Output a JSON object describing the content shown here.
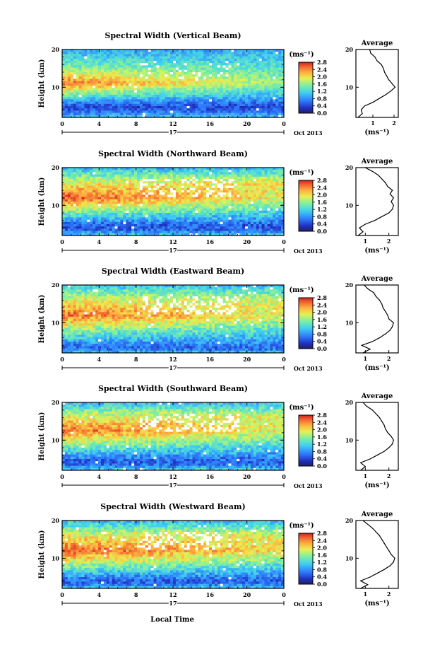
{
  "figure": {
    "xlabel": "Local Time",
    "date_label": "Oct 2013",
    "day_label": "17",
    "ylabel": "Height (km)",
    "colorbar_unit": "(ms⁻¹)",
    "avg_title": "Average",
    "avg_xlabel": "(ms⁻¹)"
  },
  "chart_data": [
    {
      "type": "heatmap",
      "title": "Spectral Width (Vertical Beam)",
      "xlabel": "Local Time",
      "ylabel": "Height (km)",
      "xlim": [
        0,
        24
      ],
      "ylim": [
        2,
        20
      ],
      "xticks": [
        "0",
        "4",
        "8",
        "12",
        "16",
        "20",
        "0"
      ],
      "yticks": [
        "20",
        "10"
      ],
      "colorbar": {
        "unit": "(ms⁻¹)",
        "ticks": [
          "2.8",
          "2.4",
          "2.0",
          "1.6",
          "1.2",
          "0.8",
          "0.4",
          "0.0"
        ],
        "range": [
          0,
          2.8
        ]
      },
      "field": {
        "top": [
          0.9,
          0.9
        ],
        "upper": [
          1.5,
          1.3
        ],
        "peak_height": 11,
        "peak": [
          2.5,
          1.6
        ],
        "trough_height": 5,
        "trough": 0.45,
        "noise": 0.25,
        "gaps": 0.02
      },
      "average": {
        "title": "Average",
        "xlabel": "(ms⁻¹)",
        "xlim": [
          0.2,
          2.2
        ],
        "xticks": [
          "1",
          "2"
        ],
        "ylim": [
          2,
          20
        ],
        "yticks": [
          "20",
          "10"
        ],
        "profile": [
          [
            0.3,
            2
          ],
          [
            0.5,
            3
          ],
          [
            0.45,
            4
          ],
          [
            0.6,
            5
          ],
          [
            1.0,
            6
          ],
          [
            1.3,
            7
          ],
          [
            1.6,
            8
          ],
          [
            1.85,
            9
          ],
          [
            2.05,
            10
          ],
          [
            1.9,
            11
          ],
          [
            1.75,
            12
          ],
          [
            1.65,
            13
          ],
          [
            1.55,
            14
          ],
          [
            1.5,
            15
          ],
          [
            1.4,
            16
          ],
          [
            1.2,
            17
          ],
          [
            1.1,
            18
          ],
          [
            0.9,
            19
          ],
          [
            0.85,
            20
          ]
        ]
      }
    },
    {
      "type": "heatmap",
      "title": "Spectral Width (Northward Beam)",
      "xlabel": "Local Time",
      "ylabel": "Height (km)",
      "xlim": [
        0,
        24
      ],
      "ylim": [
        2,
        20
      ],
      "xticks": [
        "0",
        "4",
        "8",
        "12",
        "16",
        "20",
        "0"
      ],
      "yticks": [
        "20",
        "10"
      ],
      "colorbar": {
        "unit": "(ms⁻¹)",
        "ticks": [
          "2.8",
          "2.4",
          "2.0",
          "1.6",
          "1.2",
          "0.8",
          "0.4",
          "0.0"
        ],
        "range": [
          0,
          2.8
        ]
      },
      "field": {
        "top": [
          1.0,
          1.0
        ],
        "upper": [
          1.9,
          2.0
        ],
        "peak_height": 12,
        "peak": [
          2.6,
          1.9
        ],
        "trough_height": 4.5,
        "trough": 0.5,
        "noise": 0.3,
        "gaps": 0.05
      },
      "average": {
        "title": "Average",
        "xlabel": "(ms⁻¹)",
        "xlim": [
          0.6,
          2.4
        ],
        "xticks": [
          "1",
          "2"
        ],
        "ylim": [
          2,
          20
        ],
        "yticks": [
          "20",
          "10"
        ],
        "profile": [
          [
            0.7,
            2
          ],
          [
            0.9,
            3
          ],
          [
            0.75,
            4
          ],
          [
            1.0,
            5
          ],
          [
            1.4,
            6
          ],
          [
            1.7,
            7
          ],
          [
            2.0,
            8
          ],
          [
            2.15,
            9
          ],
          [
            2.2,
            10
          ],
          [
            2.1,
            11
          ],
          [
            2.2,
            12
          ],
          [
            2.05,
            13
          ],
          [
            2.15,
            14
          ],
          [
            1.95,
            15
          ],
          [
            1.85,
            16
          ],
          [
            1.7,
            17
          ],
          [
            1.55,
            18
          ],
          [
            1.3,
            19
          ],
          [
            1.0,
            20
          ]
        ]
      }
    },
    {
      "type": "heatmap",
      "title": "Spectral Width (Eastward Beam)",
      "xlabel": "Local Time",
      "ylabel": "Height (km)",
      "xlim": [
        0,
        24
      ],
      "ylim": [
        2,
        20
      ],
      "xticks": [
        "0",
        "4",
        "8",
        "12",
        "16",
        "20",
        "0"
      ],
      "yticks": [
        "20",
        "10"
      ],
      "colorbar": {
        "unit": "(ms⁻¹)",
        "ticks": [
          "2.8",
          "2.4",
          "2.0",
          "1.6",
          "1.2",
          "0.8",
          "0.4",
          "0.0"
        ],
        "range": [
          0,
          2.8
        ]
      },
      "field": {
        "top": [
          1.1,
          1.0
        ],
        "upper": [
          1.9,
          1.8
        ],
        "peak_height": 12,
        "peak": [
          2.5,
          1.9
        ],
        "trough_height": 3.5,
        "trough": 0.6,
        "noise": 0.3,
        "gaps": 0.05
      },
      "average": {
        "title": "Average",
        "xlabel": "(ms⁻¹)",
        "xlim": [
          0.6,
          2.4
        ],
        "xticks": [
          "1",
          "2"
        ],
        "ylim": [
          2,
          20
        ],
        "yticks": [
          "20",
          "10"
        ],
        "profile": [
          [
            0.9,
            2
          ],
          [
            1.2,
            3
          ],
          [
            0.85,
            4
          ],
          [
            1.3,
            5
          ],
          [
            1.6,
            6
          ],
          [
            1.85,
            7
          ],
          [
            2.05,
            8
          ],
          [
            2.15,
            9
          ],
          [
            2.2,
            10
          ],
          [
            2.0,
            11
          ],
          [
            1.95,
            12
          ],
          [
            1.85,
            13
          ],
          [
            1.75,
            14
          ],
          [
            1.7,
            15
          ],
          [
            1.6,
            16
          ],
          [
            1.45,
            17
          ],
          [
            1.35,
            18
          ],
          [
            1.1,
            19
          ],
          [
            0.95,
            20
          ]
        ]
      }
    },
    {
      "type": "heatmap",
      "title": "Spectral Width (Southward Beam)",
      "xlabel": "Local Time",
      "ylabel": "Height (km)",
      "xlim": [
        0,
        24
      ],
      "ylim": [
        2,
        20
      ],
      "xticks": [
        "0",
        "4",
        "8",
        "12",
        "16",
        "20",
        "0"
      ],
      "yticks": [
        "20",
        "10"
      ],
      "colorbar": {
        "unit": "(ms⁻¹)",
        "ticks": [
          "2.8",
          "2.4",
          "2.0",
          "1.6",
          "1.2",
          "0.8",
          "0.4",
          "0.0"
        ],
        "range": [
          0,
          2.8
        ]
      },
      "field": {
        "top": [
          1.0,
          1.0
        ],
        "upper": [
          1.9,
          1.9
        ],
        "peak_height": 12.5,
        "peak": [
          2.5,
          1.9
        ],
        "trough_height": 4.5,
        "trough": 0.55,
        "noise": 0.3,
        "gaps": 0.05
      },
      "average": {
        "title": "Average",
        "xlabel": "(ms⁻¹)",
        "xlim": [
          0.6,
          2.4
        ],
        "xticks": [
          "1",
          "2"
        ],
        "ylim": [
          2,
          20
        ],
        "yticks": [
          "20",
          "10"
        ],
        "profile": [
          [
            0.8,
            2
          ],
          [
            1.0,
            3
          ],
          [
            0.8,
            4
          ],
          [
            1.2,
            5
          ],
          [
            1.5,
            6
          ],
          [
            1.8,
            7
          ],
          [
            2.0,
            8
          ],
          [
            2.15,
            9
          ],
          [
            2.2,
            10
          ],
          [
            2.1,
            11
          ],
          [
            1.95,
            12
          ],
          [
            1.85,
            13
          ],
          [
            1.8,
            14
          ],
          [
            1.7,
            15
          ],
          [
            1.6,
            16
          ],
          [
            1.45,
            17
          ],
          [
            1.3,
            18
          ],
          [
            1.05,
            19
          ],
          [
            0.9,
            20
          ]
        ]
      }
    },
    {
      "type": "heatmap",
      "title": "Spectral Width (Westward Beam)",
      "xlabel": "Local Time",
      "ylabel": "Height (km)",
      "xlim": [
        0,
        24
      ],
      "ylim": [
        2,
        20
      ],
      "xticks": [
        "0",
        "4",
        "8",
        "12",
        "16",
        "20",
        "0"
      ],
      "yticks": [
        "20",
        "10"
      ],
      "colorbar": {
        "unit": "(ms⁻¹)",
        "ticks": [
          "2.8",
          "2.4",
          "2.0",
          "1.6",
          "1.2",
          "0.8",
          "0.4",
          "0.0"
        ],
        "range": [
          0,
          2.8
        ]
      },
      "field": {
        "top": [
          1.0,
          1.0
        ],
        "upper": [
          1.9,
          1.9
        ],
        "peak_height": 12,
        "peak": [
          2.6,
          2.0
        ],
        "trough_height": 4,
        "trough": 0.55,
        "noise": 0.3,
        "gaps": 0.05
      },
      "average": {
        "title": "Average",
        "xlabel": "(ms⁻¹)",
        "xlim": [
          0.6,
          2.4
        ],
        "xticks": [
          "1",
          "2"
        ],
        "ylim": [
          2,
          20
        ],
        "yticks": [
          "20",
          "10"
        ],
        "profile": [
          [
            0.8,
            2
          ],
          [
            1.1,
            3
          ],
          [
            0.8,
            4
          ],
          [
            1.2,
            5
          ],
          [
            1.5,
            6
          ],
          [
            1.8,
            7
          ],
          [
            2.05,
            8
          ],
          [
            2.2,
            9
          ],
          [
            2.25,
            10
          ],
          [
            2.1,
            11
          ],
          [
            2.0,
            12
          ],
          [
            1.9,
            13
          ],
          [
            1.8,
            14
          ],
          [
            1.7,
            15
          ],
          [
            1.6,
            16
          ],
          [
            1.45,
            17
          ],
          [
            1.3,
            18
          ],
          [
            1.1,
            19
          ],
          [
            0.9,
            20
          ]
        ]
      }
    }
  ]
}
